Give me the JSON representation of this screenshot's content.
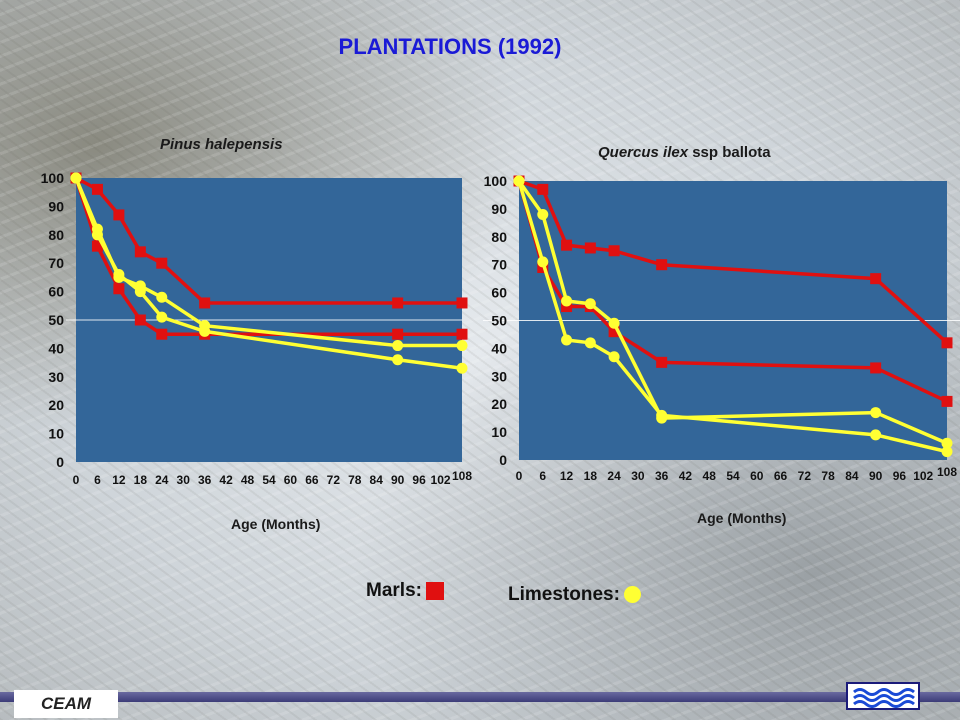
{
  "slide": {
    "title": "PLANTATIONS (1992)",
    "footer_label": "CEAM"
  },
  "legend": {
    "marls_label": "Marls:",
    "limestones_label": "Limestones:"
  },
  "colors": {
    "plot_bg": "#336699",
    "marls": "#e01010",
    "limestones": "#ffff33"
  },
  "chart_data": [
    {
      "type": "line",
      "title_species": "Pinus halepensis",
      "title_suffix": "",
      "xlabel": "Age (Months)",
      "ylabel": "",
      "xlim": [
        0,
        108
      ],
      "ylim": [
        0,
        100
      ],
      "x_ticks": [
        0,
        6,
        12,
        18,
        24,
        30,
        36,
        42,
        48,
        54,
        60,
        66,
        72,
        78,
        84,
        90,
        96,
        102,
        108
      ],
      "y_ticks": [
        0,
        10,
        20,
        30,
        40,
        50,
        60,
        70,
        80,
        90,
        100
      ],
      "reference_line": 50,
      "series": [
        {
          "kind": "marls",
          "x": [
            0,
            6,
            12,
            18,
            24,
            36,
            90,
            108
          ],
          "y": [
            100,
            96,
            87,
            74,
            70,
            56,
            56,
            56
          ]
        },
        {
          "kind": "marls",
          "x": [
            0,
            6,
            12,
            18,
            24,
            36,
            90,
            108
          ],
          "y": [
            100,
            76,
            61,
            50,
            45,
            45,
            45,
            45
          ]
        },
        {
          "kind": "limestones",
          "x": [
            0,
            6,
            12,
            18,
            24,
            36,
            90,
            108
          ],
          "y": [
            100,
            82,
            65,
            62,
            58,
            48,
            41,
            41
          ]
        },
        {
          "kind": "limestones",
          "x": [
            0,
            6,
            12,
            18,
            24,
            36,
            90,
            108
          ],
          "y": [
            100,
            80,
            66,
            60,
            51,
            46,
            36,
            33
          ]
        }
      ]
    },
    {
      "type": "line",
      "title_species": "Quercus ilex",
      "title_suffix": "ssp ballota",
      "xlabel": "Age (Months)",
      "ylabel": "",
      "xlim": [
        0,
        108
      ],
      "ylim": [
        0,
        100
      ],
      "x_ticks": [
        0,
        6,
        12,
        18,
        24,
        30,
        36,
        42,
        48,
        54,
        60,
        66,
        72,
        78,
        84,
        90,
        96,
        102,
        108
      ],
      "y_ticks": [
        0,
        10,
        20,
        30,
        40,
        50,
        60,
        70,
        80,
        90,
        100
      ],
      "reference_line": 50,
      "series": [
        {
          "kind": "marls",
          "x": [
            0,
            6,
            12,
            18,
            24,
            36,
            90,
            108
          ],
          "y": [
            100,
            97,
            77,
            76,
            75,
            70,
            65,
            42
          ]
        },
        {
          "kind": "marls",
          "x": [
            0,
            6,
            12,
            18,
            24,
            36,
            90,
            108
          ],
          "y": [
            100,
            69,
            55,
            55,
            46,
            35,
            33,
            21
          ]
        },
        {
          "kind": "limestones",
          "x": [
            0,
            6,
            12,
            18,
            24,
            36,
            90,
            108
          ],
          "y": [
            100,
            88,
            57,
            56,
            49,
            15,
            17,
            6
          ]
        },
        {
          "kind": "limestones",
          "x": [
            0,
            6,
            12,
            18,
            24,
            36,
            90,
            108
          ],
          "y": [
            100,
            71,
            43,
            42,
            37,
            16,
            9,
            3
          ]
        }
      ]
    }
  ]
}
